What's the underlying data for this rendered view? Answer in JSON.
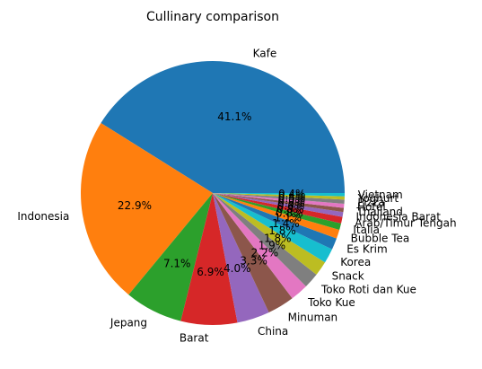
{
  "chart_data": {
    "type": "pie",
    "title": "Cullinary comparison",
    "start_angle": 0,
    "direction": "counterclockwise",
    "autopct_format": "%.1f%%",
    "slices": [
      {
        "label": "Kafe",
        "value": 41.1,
        "color": "#1f77b4"
      },
      {
        "label": "Indonesia",
        "value": 22.9,
        "color": "#ff7f0e"
      },
      {
        "label": "Jepang",
        "value": 7.1,
        "color": "#2ca02c"
      },
      {
        "label": "Barat",
        "value": 6.9,
        "color": "#d62728"
      },
      {
        "label": "China",
        "value": 4.0,
        "color": "#9467bd"
      },
      {
        "label": "Minuman",
        "value": 3.3,
        "color": "#8c564b"
      },
      {
        "label": "Toko Kue",
        "value": 2.2,
        "color": "#e377c2"
      },
      {
        "label": "Toko Roti dan Kue",
        "value": 1.9,
        "color": "#7f7f7f"
      },
      {
        "label": "Snack",
        "value": 1.8,
        "color": "#bcbd22"
      },
      {
        "label": "Korea",
        "value": 1.8,
        "color": "#17becf"
      },
      {
        "label": "Es Krim",
        "value": 1.4,
        "color": "#1f77b4"
      },
      {
        "label": "Bubble Tea",
        "value": 1.1,
        "color": "#ff7f0e"
      },
      {
        "label": "Italia",
        "value": 0.8,
        "color": "#2ca02c"
      },
      {
        "label": "Arab/Timur Tengah",
        "value": 0.8,
        "color": "#d62728"
      },
      {
        "label": "Indonesia Barat",
        "value": 0.6,
        "color": "#9467bd"
      },
      {
        "label": "Thailand",
        "value": 0.5,
        "color": "#8c564b"
      },
      {
        "label": "Hotel",
        "value": 0.5,
        "color": "#e377c2"
      },
      {
        "label": "Pizza",
        "value": 0.5,
        "color": "#7f7f7f"
      },
      {
        "label": "Yoghurt",
        "value": 0.4,
        "color": "#bcbd22"
      },
      {
        "label": "Vietnam",
        "value": 0.4,
        "color": "#17becf"
      }
    ]
  }
}
